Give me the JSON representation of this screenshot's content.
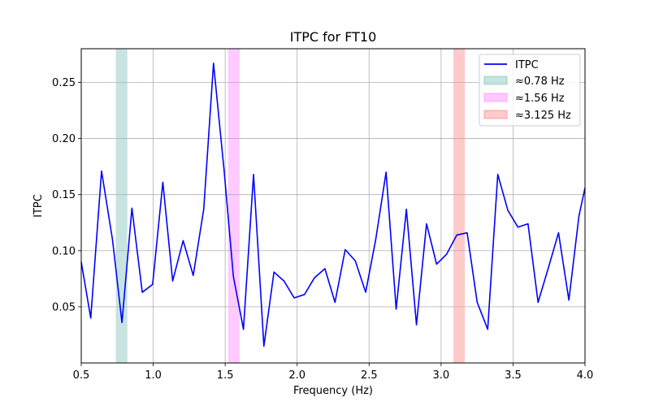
{
  "chart_data": {
    "type": "line",
    "title": "ITPC for FT10",
    "xlabel": "Frequency (Hz)",
    "ylabel": "ITPC",
    "xlim": [
      0.5,
      4.0
    ],
    "ylim": [
      0.0,
      0.28
    ],
    "xticks": [
      0.5,
      1.0,
      1.5,
      2.0,
      2.5,
      3.0,
      3.5,
      4.0
    ],
    "xtick_labels": [
      "0.5",
      "1.0",
      "1.5",
      "2.0",
      "2.5",
      "3.0",
      "3.5",
      "4.0"
    ],
    "yticks": [
      0.05,
      0.1,
      0.15,
      0.2,
      0.25
    ],
    "ytick_labels": [
      "0.05",
      "0.10",
      "0.15",
      "0.20",
      "0.25"
    ],
    "grid": true,
    "legend_position": "top-right",
    "series": [
      {
        "name": "ITPC",
        "color": "#0000ff",
        "x": [
          0.5,
          0.566,
          0.641,
          0.717,
          0.783,
          0.852,
          0.924,
          0.996,
          1.067,
          1.135,
          1.208,
          1.278,
          1.351,
          1.419,
          1.493,
          1.557,
          1.627,
          1.697,
          1.769,
          1.839,
          1.909,
          1.979,
          2.051,
          2.121,
          2.193,
          2.263,
          2.334,
          2.404,
          2.476,
          2.546,
          2.618,
          2.688,
          2.759,
          2.829,
          2.899,
          2.969,
          3.039,
          3.109,
          3.181,
          3.251,
          3.324,
          3.394,
          3.464,
          3.534,
          3.604,
          3.674,
          3.746,
          3.816,
          3.888,
          3.958,
          4.0
        ],
        "values": [
          0.09,
          0.04,
          0.171,
          0.11,
          0.036,
          0.138,
          0.063,
          0.07,
          0.161,
          0.073,
          0.109,
          0.078,
          0.137,
          0.267,
          0.171,
          0.077,
          0.03,
          0.168,
          0.015,
          0.081,
          0.073,
          0.058,
          0.061,
          0.076,
          0.084,
          0.054,
          0.101,
          0.091,
          0.063,
          0.11,
          0.17,
          0.048,
          0.137,
          0.034,
          0.124,
          0.088,
          0.097,
          0.114,
          0.116,
          0.054,
          0.03,
          0.168,
          0.136,
          0.121,
          0.124,
          0.054,
          0.085,
          0.116,
          0.056,
          0.131,
          0.156
        ]
      }
    ],
    "bands": [
      {
        "label": "≈0.78 Hz",
        "x0": 0.74,
        "x1": 0.82,
        "color": "#5fb3a6"
      },
      {
        "label": "≈1.56 Hz",
        "x0": 1.52,
        "x1": 1.6,
        "color": "#ff66ff"
      },
      {
        "label": "≈3.125 Hz",
        "x0": 3.085,
        "x1": 3.165,
        "color": "#ff6666"
      }
    ]
  }
}
